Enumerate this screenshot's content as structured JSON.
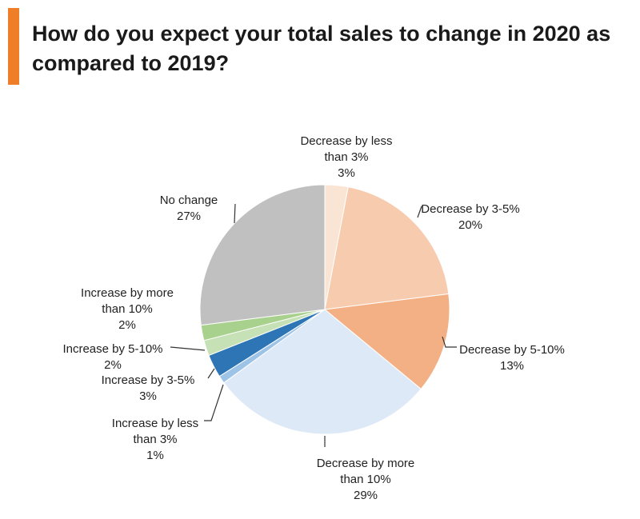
{
  "title": "How do you expect your total sales to change in 2020 as compared to 2019?",
  "accent_color": "#f07d28",
  "chart_data": {
    "type": "pie",
    "title": "How do you expect your total sales to change in 2020 as compared to 2019?",
    "unit": "%",
    "start_angle_deg": 0,
    "direction": "clockwise",
    "slices": [
      {
        "label": "Decrease by less than 3%",
        "label_lines": [
          "Decrease by less",
          "than 3%"
        ],
        "value": 3,
        "value_label": "3%",
        "color": "#fae4d4"
      },
      {
        "label": "Decrease by 3-5%",
        "label_lines": [
          "Decrease by 3-5%"
        ],
        "value": 20,
        "value_label": "20%",
        "color": "#f7cbae"
      },
      {
        "label": "Decrease by 5-10%",
        "label_lines": [
          "Decrease by 5-10%"
        ],
        "value": 13,
        "value_label": "13%",
        "color": "#f3b084"
      },
      {
        "label": "Decrease by more than 10%",
        "label_lines": [
          "Decrease by more",
          "than 10%"
        ],
        "value": 29,
        "value_label": "29%",
        "color": "#dde9f6"
      },
      {
        "label": "Increase by less than 3%",
        "label_lines": [
          "Increase by less",
          "than 3%"
        ],
        "value": 1,
        "value_label": "1%",
        "color": "#9dc3e7"
      },
      {
        "label": "Increase by 3-5%",
        "label_lines": [
          "Increase by 3-5%"
        ],
        "value": 3,
        "value_label": "3%",
        "color": "#2e75b6"
      },
      {
        "label": "Increase by 5-10%",
        "label_lines": [
          "Increase by 5-10%"
        ],
        "value": 2,
        "value_label": "2%",
        "color": "#c6e1b5"
      },
      {
        "label": "Increase by more than 10%",
        "label_lines": [
          "Increase by more",
          "than 10%"
        ],
        "value": 2,
        "value_label": "2%",
        "color": "#a9d18e"
      },
      {
        "label": "No change",
        "label_lines": [
          "No change"
        ],
        "value": 27,
        "value_label": "27%",
        "color": "#c0c0c0"
      }
    ]
  }
}
